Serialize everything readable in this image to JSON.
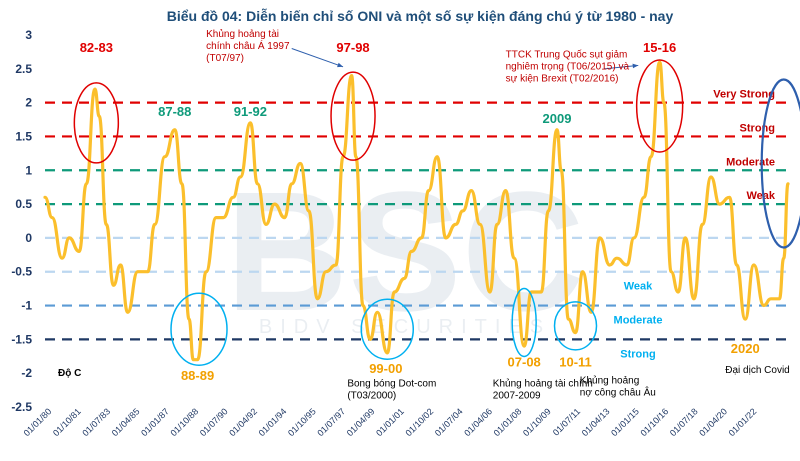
{
  "title": "Biểu đồ 04: Diễn biến chỉ số ONI và một số sự kiện đáng chú ý từ 1980  - nay",
  "watermark": {
    "logo": "BSC",
    "sub": "BIDV SECURITIES"
  },
  "unit_label": "Độ C",
  "colors": {
    "line": "#fbbf2c",
    "title": "#1f4e79",
    "red": "#e00000",
    "darkred": "#c00000",
    "green": "#0e9a7a",
    "lightblue": "#bcd7f0",
    "midblue": "#5b9bd5",
    "navy": "#1f3864",
    "cyan": "#00b0f0",
    "orange": "#f2a000",
    "circle_blue": "#2e5fad"
  },
  "chart_data": {
    "type": "line",
    "xlabel": "",
    "ylabel": "",
    "ylim": [
      -2.5,
      3
    ],
    "y_ticks": [
      "3",
      "2.5",
      "2",
      "1.5",
      "1",
      "0.5",
      "0",
      "-0.5",
      "-1",
      "-1.5",
      "-2",
      "-2.5"
    ],
    "x_range": [
      "1980-01-01",
      "2023-06-01"
    ],
    "x_ticks": [
      "01/01/80",
      "01/10/81",
      "01/07/83",
      "01/04/85",
      "01/01/87",
      "01/10/88",
      "01/07/90",
      "01/04/92",
      "01/01/94",
      "01/10/95",
      "01/07/97",
      "01/04/99",
      "01/01/01",
      "01/10/02",
      "01/07/04",
      "01/04/06",
      "01/01/08",
      "01/10/09",
      "01/07/11",
      "01/04/13",
      "01/01/15",
      "01/10/16",
      "01/07/18",
      "01/04/20",
      "01/01/22"
    ],
    "reference_lines": [
      {
        "label": "Very Strong",
        "y": 2,
        "color": "#e00000"
      },
      {
        "label": "Strong",
        "y": 1.5,
        "color": "#e00000"
      },
      {
        "label": "Moderate",
        "y": 1,
        "color": "#0e9a7a"
      },
      {
        "label": "Weak",
        "y": 0.5,
        "color": "#0e9a7a"
      },
      {
        "label": "",
        "y": 0,
        "color": "#bcd7f0"
      },
      {
        "label": "Weak",
        "y": -0.5,
        "color": "#bcd7f0"
      },
      {
        "label": "Moderate",
        "y": -1,
        "color": "#5b9bd5"
      },
      {
        "label": "Strong",
        "y": -1.5,
        "color": "#1f3864"
      }
    ],
    "series": [
      {
        "x": [
          "1980-01",
          "1980-06",
          "1981-01",
          "1981-06",
          "1982-01",
          "1982-06",
          "1982-12",
          "1983-03",
          "1983-08",
          "1984-01",
          "1984-06",
          "1984-11",
          "1985-06",
          "1986-01",
          "1986-06",
          "1987-01",
          "1987-08",
          "1988-01",
          "1988-06",
          "1988-09",
          "1988-12",
          "1989-06",
          "1990-01",
          "1990-06",
          "1991-01",
          "1991-06",
          "1992-01",
          "1992-06",
          "1992-12",
          "1993-06",
          "1994-01",
          "1994-06",
          "1994-12",
          "1995-06",
          "1995-12",
          "1996-06",
          "1997-01",
          "1997-06",
          "1997-12",
          "1998-03",
          "1998-08",
          "1999-01",
          "1999-06",
          "2000-01",
          "2000-06",
          "2001-01",
          "2001-06",
          "2002-01",
          "2002-06",
          "2002-12",
          "2003-06",
          "2004-01",
          "2004-06",
          "2004-12",
          "2005-06",
          "2006-01",
          "2006-06",
          "2006-12",
          "2007-06",
          "2008-01",
          "2008-06",
          "2009-01",
          "2009-06",
          "2009-12",
          "2010-03",
          "2010-08",
          "2011-01",
          "2011-06",
          "2011-12",
          "2012-06",
          "2013-01",
          "2013-06",
          "2014-01",
          "2014-06",
          "2015-01",
          "2015-06",
          "2015-12",
          "2016-03",
          "2016-08",
          "2017-01",
          "2017-06",
          "2017-12",
          "2018-06",
          "2018-12",
          "2019-06",
          "2020-01",
          "2020-06",
          "2020-12",
          "2021-06",
          "2022-01",
          "2022-06",
          "2022-12",
          "2023-03",
          "2023-06"
        ],
        "values": [
          0.6,
          0.3,
          -0.3,
          0.0,
          -0.2,
          0.8,
          2.2,
          1.8,
          0.2,
          -0.7,
          -0.4,
          -1.1,
          -0.5,
          -0.5,
          0.2,
          1.2,
          1.6,
          0.8,
          -1.2,
          -1.8,
          -1.8,
          -0.5,
          0.3,
          0.3,
          0.6,
          0.9,
          1.7,
          0.8,
          0.2,
          0.5,
          0.3,
          0.8,
          1.1,
          0.4,
          -0.9,
          -0.5,
          -0.4,
          1.2,
          2.4,
          1.2,
          -1.0,
          -1.5,
          -1.1,
          -1.7,
          -0.8,
          -0.6,
          -0.2,
          0.0,
          0.7,
          1.2,
          0.0,
          0.2,
          0.4,
          0.7,
          0.2,
          -0.8,
          0.2,
          0.7,
          -0.3,
          -1.6,
          -0.8,
          -0.8,
          0.4,
          1.6,
          1.0,
          -1.2,
          -1.4,
          -0.5,
          -1.1,
          0.0,
          -0.4,
          -0.3,
          -0.4,
          0.0,
          0.6,
          1.2,
          2.6,
          2.0,
          -0.5,
          -0.8,
          0.0,
          -0.9,
          0.2,
          0.9,
          0.5,
          0.6,
          -0.4,
          -1.2,
          -0.4,
          -1.0,
          -0.9,
          -0.9,
          -0.3,
          0.8
        ]
      }
    ]
  },
  "peak_labels": [
    {
      "text": "82-83",
      "x": "1983-01",
      "y": 2.75,
      "style": "peak-red"
    },
    {
      "text": "97-98",
      "x": "1998-01",
      "y": 2.75,
      "style": "peak-red"
    },
    {
      "text": "15-16",
      "x": "2015-12",
      "y": 2.75,
      "style": "peak-red"
    },
    {
      "text": "87-88",
      "x": "1987-08",
      "y": 1.8,
      "style": "peak-green"
    },
    {
      "text": "91-92",
      "x": "1992-01",
      "y": 1.8,
      "style": "peak-green"
    },
    {
      "text": "2009",
      "x": "2009-12",
      "y": 1.7,
      "style": "peak-green"
    },
    {
      "text": "88-89",
      "x": "1988-12",
      "y": -2.1,
      "style": "peak-orange"
    },
    {
      "text": "99-00",
      "x": "1999-12",
      "y": -2.0,
      "style": "peak-orange"
    },
    {
      "text": "07-08",
      "x": "2008-01",
      "y": -1.9,
      "style": "peak-orange"
    },
    {
      "text": "10-11",
      "x": "2011-01",
      "y": -1.9,
      "style": "peak-orange"
    },
    {
      "text": "2020",
      "x": "2020-12",
      "y": -1.7,
      "style": "peak-orange"
    }
  ],
  "annotations": [
    {
      "lines": [
        "Khủng hoảng tài",
        "chính châu Á 1997",
        "(T07/97)"
      ],
      "x": "1989-06",
      "y": 2.97,
      "style": "ann"
    },
    {
      "lines": [
        "TTCK Trung Quốc sụt giảm",
        "nghiêm trọng (T06/2015) và",
        "sự kiện Brexit (T02/2016)"
      ],
      "x": "2006-12",
      "y": 2.67,
      "style": "ann"
    },
    {
      "lines": [
        "Bong bóng Dot-com",
        "(T03/2000)"
      ],
      "x": "1997-09",
      "y": -2.2,
      "style": "ann-b"
    },
    {
      "lines": [
        "Khủng hoảng tài chính",
        "2007-2009"
      ],
      "x": "2006-03",
      "y": -2.2,
      "style": "ann-b"
    },
    {
      "lines": [
        "Khủng hoảng",
        "nợ công châu Âu"
      ],
      "x": "2011-04",
      "y": -2.15,
      "style": "ann-b"
    },
    {
      "lines": [
        "Đại dịch Covid"
      ],
      "x": "2019-10",
      "y": -2.0,
      "style": "ann-b"
    }
  ]
}
